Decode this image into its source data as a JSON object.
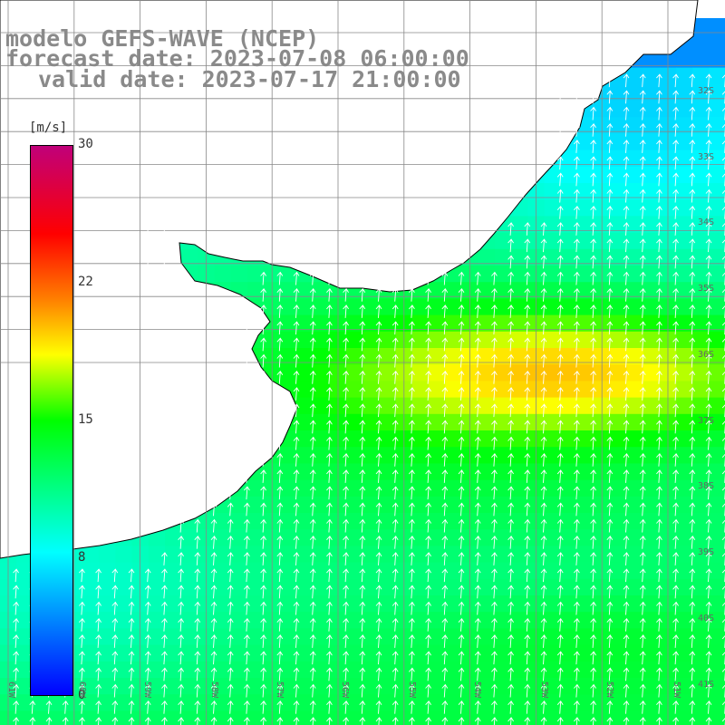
{
  "title": {
    "line1": "modelo GEFS-WAVE (NCEP)",
    "line2": "forecast date: 2023-07-08 06:00:00",
    "line3": "valid date: 2023-07-17 21:00:00"
  },
  "colorbar": {
    "unit": "[m/s]",
    "min": 0,
    "max": 30,
    "ticks": [
      "30",
      "22",
      "15",
      "8",
      "0"
    ],
    "colors": [
      "#0000ff",
      "#00ffff",
      "#00ff00",
      "#ffff00",
      "#ff8000",
      "#ff0000",
      "#c0007a"
    ]
  },
  "map": {
    "lon_labels": [
      "61W",
      "60W",
      "59W",
      "58W",
      "57W",
      "56W",
      "55W",
      "54W",
      "53W",
      "52W",
      "51W"
    ],
    "lat_labels": [
      "32S",
      "33S",
      "34S",
      "35S",
      "36S",
      "37S",
      "38S",
      "39S",
      "40S",
      "41S"
    ],
    "land_color": "#ffffff",
    "arrow_color": "#ffffff",
    "coast_color": "#000000",
    "grid_color": "#888888"
  }
}
